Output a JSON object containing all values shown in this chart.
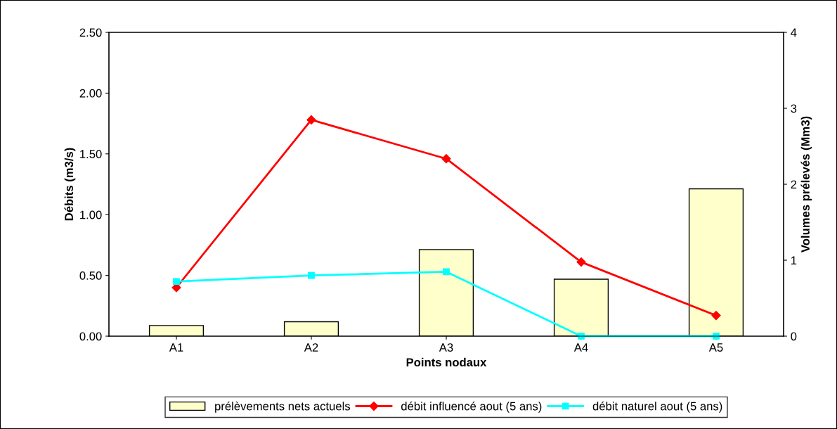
{
  "chart_data": {
    "type": "line",
    "xlabel": "Points nodaux",
    "ylabel": "Débits (m3/s)",
    "y2label": "Volumes prélevés (Mm3)",
    "categories": [
      "A1",
      "A2",
      "A3",
      "A4",
      "A5"
    ],
    "series": [
      {
        "name": "prélèvements nets actuels",
        "type": "bar",
        "axis": "y2",
        "color": "#ffffcc",
        "values": [
          0.14,
          0.19,
          1.14,
          0.75,
          1.94
        ]
      },
      {
        "name": "débit influencé aout (5 ans)",
        "marker": "diamond",
        "color": "#ff0000",
        "values": [
          0.4,
          1.78,
          1.46,
          0.61,
          0.17
        ]
      },
      {
        "name": "débit naturel aout (5 ans)",
        "marker": "square",
        "color": "#00ffff",
        "values": [
          0.45,
          0.5,
          0.53,
          0.0,
          0.0
        ]
      }
    ],
    "ylim": [
      0,
      2.5
    ],
    "yticks": [
      {
        "value": 0,
        "label": "0.00"
      },
      {
        "value": 0.5,
        "label": "0.50"
      },
      {
        "value": 1,
        "label": "1.00"
      },
      {
        "value": 1.5,
        "label": "1.50"
      },
      {
        "value": 2,
        "label": "2.00"
      },
      {
        "value": 2.5,
        "label": "2.50"
      }
    ],
    "y2lim": [
      0,
      4
    ],
    "y2ticks": [
      0,
      1,
      2,
      3,
      4
    ],
    "grid": false,
    "legend": "bottom"
  }
}
